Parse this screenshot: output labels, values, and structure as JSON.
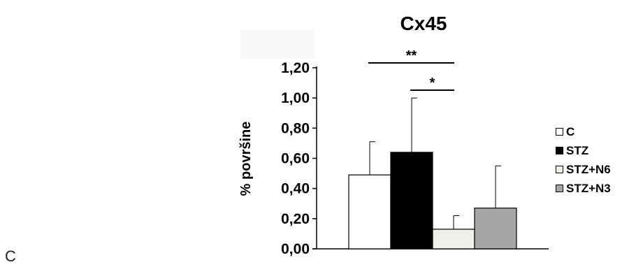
{
  "panel_label": "C",
  "chart_data": {
    "type": "bar",
    "title": "Cx45",
    "xlabel": "",
    "ylabel": "% površine",
    "ylim": [
      0,
      1.2
    ],
    "yticks": [
      "0,00",
      "0,20",
      "0,40",
      "0,60",
      "0,80",
      "1,00",
      "1,20"
    ],
    "categories": [
      "C",
      "STZ",
      "STZ+N6",
      "STZ+N3"
    ],
    "values": [
      0.49,
      0.64,
      0.13,
      0.27
    ],
    "errors": [
      0.22,
      0.36,
      0.09,
      0.28
    ],
    "colors": [
      "#ffffff",
      "#000000",
      "#f1f0e6",
      "#a6a6a6"
    ],
    "legend": {
      "position": "right",
      "entries": [
        "C",
        "STZ",
        "STZ+N6",
        "STZ+N3"
      ]
    },
    "significance": [
      {
        "from": 0,
        "to": 2,
        "label": "**"
      },
      {
        "from": 1,
        "to": 2,
        "label": "*"
      }
    ],
    "grid": false
  }
}
